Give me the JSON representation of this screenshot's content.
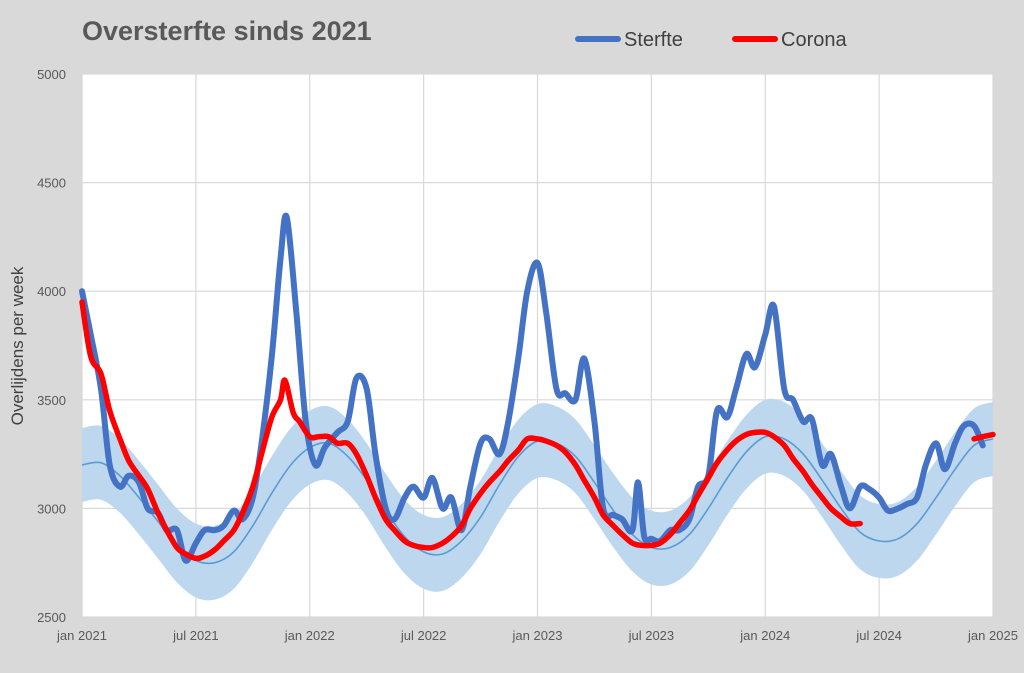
{
  "chart_data": {
    "type": "line",
    "title": "Oversterfte sinds 2021",
    "xlabel": "",
    "ylabel": "Overlijdens per week",
    "ylim": [
      2500,
      5000
    ],
    "yticks": [
      "2500",
      "3000",
      "3500",
      "4000",
      "4500",
      "5000"
    ],
    "xlim": [
      "2021-01-01",
      "2025-01-01"
    ],
    "xticks": [
      {
        "date": "2021-01-01",
        "label": "jan 2021"
      },
      {
        "date": "2021-07-01",
        "label": "jul 2021"
      },
      {
        "date": "2022-01-01",
        "label": "jan 2022"
      },
      {
        "date": "2022-07-01",
        "label": "jul 2022"
      },
      {
        "date": "2023-01-01",
        "label": "jan 2023"
      },
      {
        "date": "2023-07-01",
        "label": "jul 2023"
      },
      {
        "date": "2024-01-01",
        "label": "jan 2024"
      },
      {
        "date": "2024-07-01",
        "label": "jul 2024"
      },
      {
        "date": "2025-01-01",
        "label": "jan 2025"
      }
    ],
    "grid": true,
    "legend_position": "top",
    "colors": {
      "sterfte": "#4472c4",
      "corona": "#ff0000",
      "baseline": "#5b9bd5",
      "band": "#bdd7ee",
      "background": "#d9d9d9"
    },
    "baseline": {
      "band_halfwidth": 170,
      "points": [
        [
          "2021-01-01",
          3200
        ],
        [
          "2021-02-01",
          3210
        ],
        [
          "2021-03-01",
          3150
        ],
        [
          "2021-04-01",
          3050
        ],
        [
          "2021-05-01",
          2940
        ],
        [
          "2021-06-01",
          2830
        ],
        [
          "2021-07-01",
          2760
        ],
        [
          "2021-08-01",
          2750
        ],
        [
          "2021-09-01",
          2800
        ],
        [
          "2021-10-01",
          2920
        ],
        [
          "2021-11-01",
          3070
        ],
        [
          "2021-12-01",
          3200
        ],
        [
          "2022-01-01",
          3280
        ],
        [
          "2022-02-01",
          3300
        ],
        [
          "2022-03-01",
          3240
        ],
        [
          "2022-04-01",
          3130
        ],
        [
          "2022-05-01",
          2990
        ],
        [
          "2022-06-01",
          2870
        ],
        [
          "2022-07-01",
          2800
        ],
        [
          "2022-08-01",
          2790
        ],
        [
          "2022-09-01",
          2850
        ],
        [
          "2022-10-01",
          2960
        ],
        [
          "2022-11-01",
          3110
        ],
        [
          "2022-12-01",
          3240
        ],
        [
          "2023-01-01",
          3310
        ],
        [
          "2023-02-01",
          3300
        ],
        [
          "2023-03-01",
          3240
        ],
        [
          "2023-04-01",
          3120
        ],
        [
          "2023-05-01",
          2990
        ],
        [
          "2023-06-01",
          2880
        ],
        [
          "2023-07-01",
          2820
        ],
        [
          "2023-08-01",
          2820
        ],
        [
          "2023-09-01",
          2880
        ],
        [
          "2023-10-01",
          3000
        ],
        [
          "2023-11-01",
          3140
        ],
        [
          "2023-12-01",
          3260
        ],
        [
          "2024-01-01",
          3330
        ],
        [
          "2024-02-01",
          3320
        ],
        [
          "2024-03-01",
          3250
        ],
        [
          "2024-04-01",
          3130
        ],
        [
          "2024-05-01",
          3000
        ],
        [
          "2024-06-01",
          2890
        ],
        [
          "2024-07-01",
          2850
        ],
        [
          "2024-08-01",
          2860
        ],
        [
          "2024-09-01",
          2930
        ],
        [
          "2024-10-01",
          3050
        ],
        [
          "2024-11-01",
          3180
        ],
        [
          "2024-12-01",
          3290
        ],
        [
          "2025-01-01",
          3320
        ]
      ]
    },
    "series": [
      {
        "name": "Sterfte",
        "segments": [
          [
            [
              "2021-01-01",
              4000
            ],
            [
              "2021-01-15",
              3800
            ],
            [
              "2021-02-01",
              3550
            ],
            [
              "2021-02-15",
              3200
            ],
            [
              "2021-03-01",
              3100
            ],
            [
              "2021-03-15",
              3150
            ],
            [
              "2021-04-01",
              3120
            ],
            [
              "2021-04-15",
              3000
            ],
            [
              "2021-05-01",
              2980
            ],
            [
              "2021-05-15",
              2900
            ],
            [
              "2021-06-01",
              2900
            ],
            [
              "2021-06-15",
              2760
            ],
            [
              "2021-07-01",
              2840
            ],
            [
              "2021-07-15",
              2900
            ],
            [
              "2021-08-01",
              2900
            ],
            [
              "2021-08-15",
              2920
            ],
            [
              "2021-09-01",
              2990
            ],
            [
              "2021-09-15",
              2950
            ],
            [
              "2021-10-01",
              3050
            ],
            [
              "2021-10-15",
              3300
            ],
            [
              "2021-11-01",
              3700
            ],
            [
              "2021-11-15",
              4150
            ],
            [
              "2021-11-25",
              4340
            ],
            [
              "2021-12-10",
              3900
            ],
            [
              "2021-12-25",
              3400
            ],
            [
              "2022-01-10",
              3200
            ],
            [
              "2022-01-25",
              3280
            ],
            [
              "2022-02-15",
              3350
            ],
            [
              "2022-03-01",
              3400
            ],
            [
              "2022-03-15",
              3600
            ],
            [
              "2022-04-01",
              3550
            ],
            [
              "2022-04-15",
              3250
            ],
            [
              "2022-05-01",
              3000
            ],
            [
              "2022-05-15",
              2950
            ],
            [
              "2022-06-01",
              3050
            ],
            [
              "2022-06-15",
              3100
            ],
            [
              "2022-07-01",
              3050
            ],
            [
              "2022-07-15",
              3140
            ],
            [
              "2022-08-01",
              3000
            ],
            [
              "2022-08-15",
              3050
            ],
            [
              "2022-09-01",
              2900
            ],
            [
              "2022-09-15",
              3100
            ],
            [
              "2022-10-01",
              3300
            ],
            [
              "2022-10-15",
              3320
            ],
            [
              "2022-11-01",
              3250
            ],
            [
              "2022-11-15",
              3400
            ],
            [
              "2022-12-01",
              3700
            ],
            [
              "2022-12-15",
              4000
            ],
            [
              "2023-01-01",
              4130
            ],
            [
              "2023-01-15",
              3900
            ],
            [
              "2023-02-01",
              3550
            ],
            [
              "2023-02-15",
              3530
            ],
            [
              "2023-03-01",
              3500
            ],
            [
              "2023-03-15",
              3690
            ],
            [
              "2023-04-01",
              3400
            ],
            [
              "2023-04-15",
              3000
            ],
            [
              "2023-05-01",
              2970
            ],
            [
              "2023-05-15",
              2950
            ],
            [
              "2023-06-01",
              2900
            ],
            [
              "2023-06-10",
              3120
            ],
            [
              "2023-06-20",
              2870
            ],
            [
              "2023-07-01",
              2860
            ],
            [
              "2023-07-15",
              2850
            ],
            [
              "2023-08-01",
              2900
            ],
            [
              "2023-08-15",
              2900
            ],
            [
              "2023-09-01",
              2950
            ],
            [
              "2023-09-15",
              3100
            ],
            [
              "2023-10-01",
              3150
            ],
            [
              "2023-10-15",
              3450
            ],
            [
              "2023-11-01",
              3420
            ],
            [
              "2023-11-15",
              3550
            ],
            [
              "2023-12-01",
              3710
            ],
            [
              "2023-12-15",
              3650
            ],
            [
              "2024-01-01",
              3800
            ],
            [
              "2024-01-15",
              3930
            ],
            [
              "2024-02-01",
              3550
            ],
            [
              "2024-02-15",
              3500
            ],
            [
              "2024-03-01",
              3400
            ],
            [
              "2024-03-15",
              3410
            ],
            [
              "2024-04-01",
              3200
            ],
            [
              "2024-04-15",
              3250
            ],
            [
              "2024-05-01",
              3100
            ],
            [
              "2024-05-15",
              3000
            ],
            [
              "2024-06-01",
              3100
            ],
            [
              "2024-06-15",
              3090
            ],
            [
              "2024-07-01",
              3050
            ],
            [
              "2024-07-15",
              2990
            ],
            [
              "2024-08-01",
              3000
            ],
            [
              "2024-08-15",
              3020
            ],
            [
              "2024-09-01",
              3050
            ],
            [
              "2024-09-15",
              3200
            ],
            [
              "2024-10-01",
              3300
            ],
            [
              "2024-10-15",
              3180
            ],
            [
              "2024-11-01",
              3300
            ],
            [
              "2024-11-15",
              3380
            ],
            [
              "2024-12-01",
              3380
            ],
            [
              "2024-12-15",
              3290
            ]
          ]
        ]
      },
      {
        "name": "Corona",
        "segments": [
          [
            [
              "2021-01-01",
              3950
            ],
            [
              "2021-01-15",
              3700
            ],
            [
              "2021-02-01",
              3620
            ],
            [
              "2021-02-15",
              3450
            ],
            [
              "2021-03-01",
              3320
            ],
            [
              "2021-03-15",
              3220
            ],
            [
              "2021-04-01",
              3150
            ],
            [
              "2021-04-15",
              3090
            ],
            [
              "2021-05-01",
              2980
            ],
            [
              "2021-05-15",
              2900
            ],
            [
              "2021-06-01",
              2820
            ],
            [
              "2021-06-15",
              2790
            ],
            [
              "2021-07-01",
              2770
            ],
            [
              "2021-07-15",
              2780
            ],
            [
              "2021-08-01",
              2810
            ],
            [
              "2021-08-15",
              2850
            ],
            [
              "2021-09-01",
              2900
            ],
            [
              "2021-09-15",
              2980
            ],
            [
              "2021-10-01",
              3100
            ],
            [
              "2021-10-15",
              3250
            ],
            [
              "2021-11-01",
              3420
            ],
            [
              "2021-11-15",
              3500
            ],
            [
              "2021-11-22",
              3590
            ],
            [
              "2021-12-05",
              3440
            ],
            [
              "2021-12-15",
              3400
            ],
            [
              "2022-01-01",
              3330
            ],
            [
              "2022-01-15",
              3330
            ],
            [
              "2022-02-01",
              3330
            ],
            [
              "2022-02-15",
              3300
            ],
            [
              "2022-03-01",
              3300
            ],
            [
              "2022-03-15",
              3250
            ],
            [
              "2022-04-01",
              3150
            ],
            [
              "2022-04-15",
              3050
            ],
            [
              "2022-05-01",
              2950
            ],
            [
              "2022-05-15",
              2900
            ],
            [
              "2022-06-01",
              2850
            ],
            [
              "2022-06-15",
              2830
            ],
            [
              "2022-07-01",
              2820
            ],
            [
              "2022-07-15",
              2820
            ],
            [
              "2022-08-01",
              2840
            ],
            [
              "2022-08-15",
              2870
            ],
            [
              "2022-09-01",
              2920
            ],
            [
              "2022-09-15",
              3000
            ],
            [
              "2022-10-01",
              3070
            ],
            [
              "2022-10-15",
              3120
            ],
            [
              "2022-11-01",
              3170
            ],
            [
              "2022-11-15",
              3220
            ],
            [
              "2022-12-01",
              3270
            ],
            [
              "2022-12-15",
              3320
            ],
            [
              "2023-01-01",
              3320
            ],
            [
              "2023-01-15",
              3310
            ],
            [
              "2023-02-01",
              3290
            ],
            [
              "2023-02-15",
              3260
            ],
            [
              "2023-03-01",
              3200
            ],
            [
              "2023-03-15",
              3130
            ],
            [
              "2023-04-01",
              3050
            ],
            [
              "2023-04-15",
              2970
            ],
            [
              "2023-05-01",
              2920
            ],
            [
              "2023-05-15",
              2880
            ],
            [
              "2023-06-01",
              2840
            ],
            [
              "2023-06-15",
              2830
            ],
            [
              "2023-07-01",
              2830
            ],
            [
              "2023-07-15",
              2840
            ],
            [
              "2023-08-01",
              2880
            ],
            [
              "2023-08-15",
              2930
            ],
            [
              "2023-09-01",
              2990
            ],
            [
              "2023-09-15",
              3060
            ],
            [
              "2023-10-01",
              3140
            ],
            [
              "2023-10-15",
              3210
            ],
            [
              "2023-11-01",
              3270
            ],
            [
              "2023-11-15",
              3310
            ],
            [
              "2023-12-01",
              3340
            ],
            [
              "2023-12-15",
              3350
            ],
            [
              "2024-01-01",
              3350
            ],
            [
              "2024-01-15",
              3330
            ],
            [
              "2024-02-01",
              3290
            ],
            [
              "2024-02-15",
              3230
            ],
            [
              "2024-03-01",
              3170
            ],
            [
              "2024-03-15",
              3110
            ],
            [
              "2024-04-01",
              3050
            ],
            [
              "2024-04-15",
              3000
            ],
            [
              "2024-05-01",
              2960
            ],
            [
              "2024-05-15",
              2930
            ],
            [
              "2024-06-01",
              2930
            ]
          ],
          [
            [
              "2024-12-01",
              3320
            ],
            [
              "2024-12-15",
              3330
            ],
            [
              "2025-01-01",
              3340
            ]
          ]
        ]
      }
    ]
  }
}
